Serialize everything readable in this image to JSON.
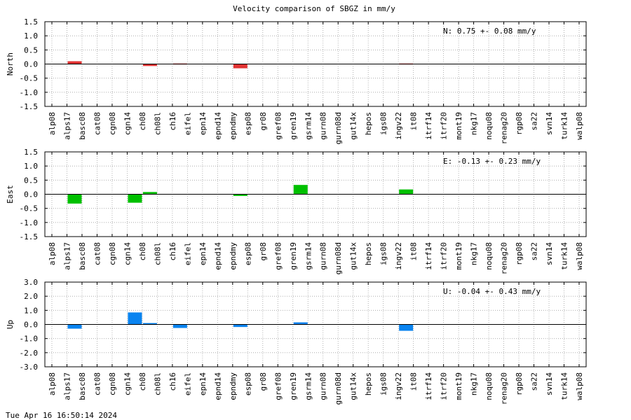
{
  "title": "Velocity comparison of SBGZ in mm/y",
  "timestamp": "Tue Apr 16 16:50:14 2024",
  "chart_data": [
    {
      "type": "bar",
      "ylabel": "North",
      "ylim": [
        -1.5,
        1.5
      ],
      "yticks": [
        "1.5",
        "1.0",
        "0.5",
        "0.0",
        "-0.5",
        "-1.0",
        "-1.5"
      ],
      "annotation": "N:   0.75 +-  0.08 mm/y",
      "color": "#e03232",
      "grid": true,
      "categories": [
        "alp08",
        "alps17",
        "basc08",
        "cat08",
        "cgn08",
        "cgn14",
        "ch08",
        "ch08l",
        "ch16",
        "eifel",
        "epn14",
        "epnd14",
        "epndmy",
        "esp08",
        "gr08",
        "gref08",
        "gren19",
        "gsrm14",
        "gurn08",
        "gurn08d",
        "gut14x",
        "hepos",
        "igs08",
        "ingv22",
        "it08",
        "itrf14",
        "itrf20",
        "mont19",
        "nkg17",
        "noqu08",
        "renag20",
        "rgp08",
        "sa22",
        "svn14",
        "turk14",
        "walp08"
      ],
      "values": [
        0,
        0.1,
        0,
        0,
        0,
        0,
        -0.07,
        0,
        0.02,
        0,
        0,
        0,
        -0.15,
        0,
        0,
        0,
        0,
        0,
        0,
        0,
        0,
        0,
        0,
        0.02,
        0,
        0,
        0,
        0,
        0,
        0,
        0,
        0,
        0,
        0,
        0,
        0
      ]
    },
    {
      "type": "bar",
      "ylabel": "East",
      "ylim": [
        -1.5,
        1.5
      ],
      "yticks": [
        "1.5",
        "1.0",
        "0.5",
        "0.0",
        "-0.5",
        "-1.0",
        "-1.5"
      ],
      "annotation": "E:  -0.13 +-  0.23 mm/y",
      "color": "#00c000",
      "grid": true,
      "categories": [
        "alp08",
        "alps17",
        "basc08",
        "cat08",
        "cgn08",
        "cgn14",
        "ch08",
        "ch08l",
        "ch16",
        "eifel",
        "epn14",
        "epnd14",
        "epndmy",
        "esp08",
        "gr08",
        "gref08",
        "gren19",
        "gsrm14",
        "gurn08",
        "gurn08d",
        "gut14x",
        "hepos",
        "igs08",
        "ingv22",
        "it08",
        "itrf14",
        "itrf20",
        "mont19",
        "nkg17",
        "noqu08",
        "renag20",
        "rgp08",
        "sa22",
        "svn14",
        "turk14",
        "walp08"
      ],
      "values": [
        0,
        -0.33,
        0,
        0,
        0,
        -0.3,
        0.08,
        0,
        0,
        0,
        0,
        0,
        -0.06,
        0,
        0,
        0,
        0.33,
        0,
        0,
        0,
        0,
        0,
        0,
        0.17,
        0,
        0,
        0,
        0,
        0,
        0,
        0,
        0,
        0,
        0,
        0,
        0
      ]
    },
    {
      "type": "bar",
      "ylabel": "Up",
      "ylim": [
        -3.0,
        3.0
      ],
      "yticks": [
        "3.0",
        "2.0",
        "1.0",
        "0.0",
        "-1.0",
        "-2.0",
        "-3.0"
      ],
      "annotation": "U:  -0.04 +-  0.43 mm/y",
      "color": "#0a84f0",
      "grid": true,
      "categories": [
        "alp08",
        "alps17",
        "basc08",
        "cat08",
        "cgn08",
        "cgn14",
        "ch08",
        "ch08l",
        "ch16",
        "eifel",
        "epn14",
        "epnd14",
        "epndmy",
        "esp08",
        "gr08",
        "gref08",
        "gren19",
        "gsrm14",
        "gurn08",
        "gurn08d",
        "gut14x",
        "hepos",
        "igs08",
        "ingv22",
        "it08",
        "itrf14",
        "itrf20",
        "mont19",
        "nkg17",
        "noqu08",
        "renag20",
        "rgp08",
        "sa22",
        "svn14",
        "turk14",
        "walp08"
      ],
      "values": [
        0,
        -0.3,
        0,
        0,
        0,
        0.85,
        0.1,
        0,
        -0.25,
        0,
        0,
        0,
        -0.18,
        0,
        0,
        0,
        0.15,
        0,
        0,
        0,
        0,
        0,
        0,
        -0.45,
        0,
        0,
        0,
        0,
        0,
        0,
        0,
        0,
        0,
        0,
        0,
        0
      ]
    }
  ]
}
